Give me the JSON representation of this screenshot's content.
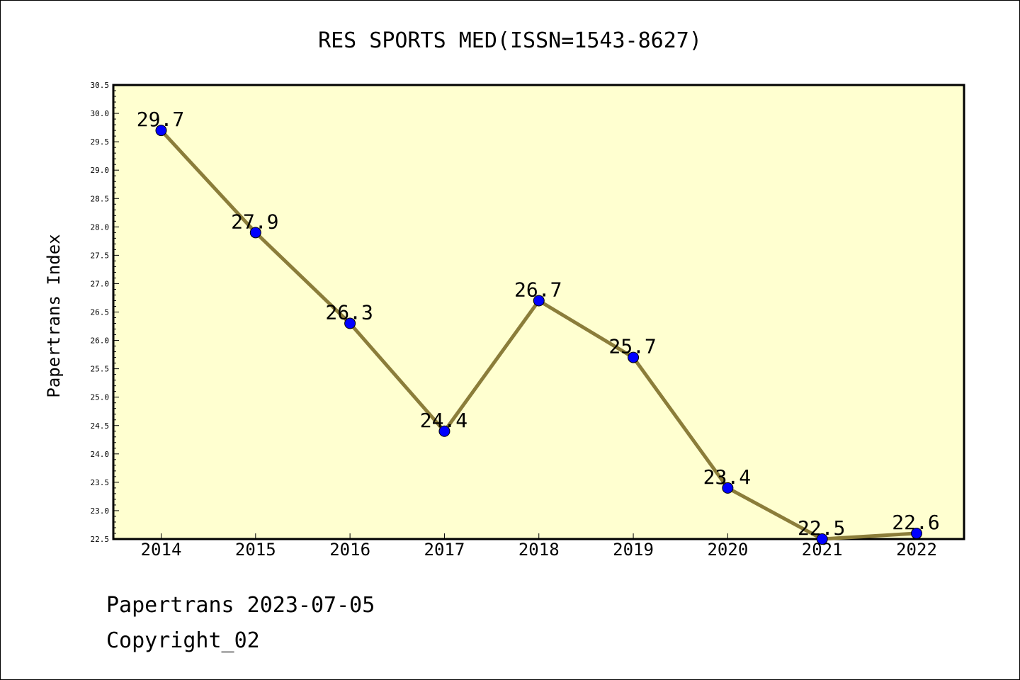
{
  "chart_data": {
    "type": "line",
    "title": "RES SPORTS MED(ISSN=1543-8627)",
    "ylabel": "Papertrans Index",
    "xlabel": "",
    "categories": [
      "2014",
      "2015",
      "2016",
      "2017",
      "2018",
      "2019",
      "2020",
      "2021",
      "2022"
    ],
    "series": [
      {
        "values": [
          29.7,
          27.9,
          26.3,
          24.4,
          26.7,
          25.7,
          23.4,
          22.5,
          22.6
        ],
        "labels": [
          "29.7",
          "27.9",
          "26.3",
          "24.4",
          "26.7",
          "25.7",
          "23.4",
          "22.5",
          "22.6"
        ]
      }
    ],
    "ylim": [
      22.5,
      30.5
    ],
    "yticks": [
      "22.5",
      "23.0",
      "23.5",
      "24.0",
      "24.5",
      "25.0",
      "25.5",
      "26.0",
      "26.5",
      "27.0",
      "27.5",
      "28.0",
      "28.5",
      "29.0",
      "29.5",
      "30.0",
      "30.5"
    ],
    "grid": false,
    "colors": {
      "plot_background": "#ffffd0",
      "line": "#8b7d3a",
      "marker": "#0000ff"
    }
  },
  "footer": {
    "line1": "Papertrans 2023-07-05",
    "line2": "Copyright_02"
  }
}
